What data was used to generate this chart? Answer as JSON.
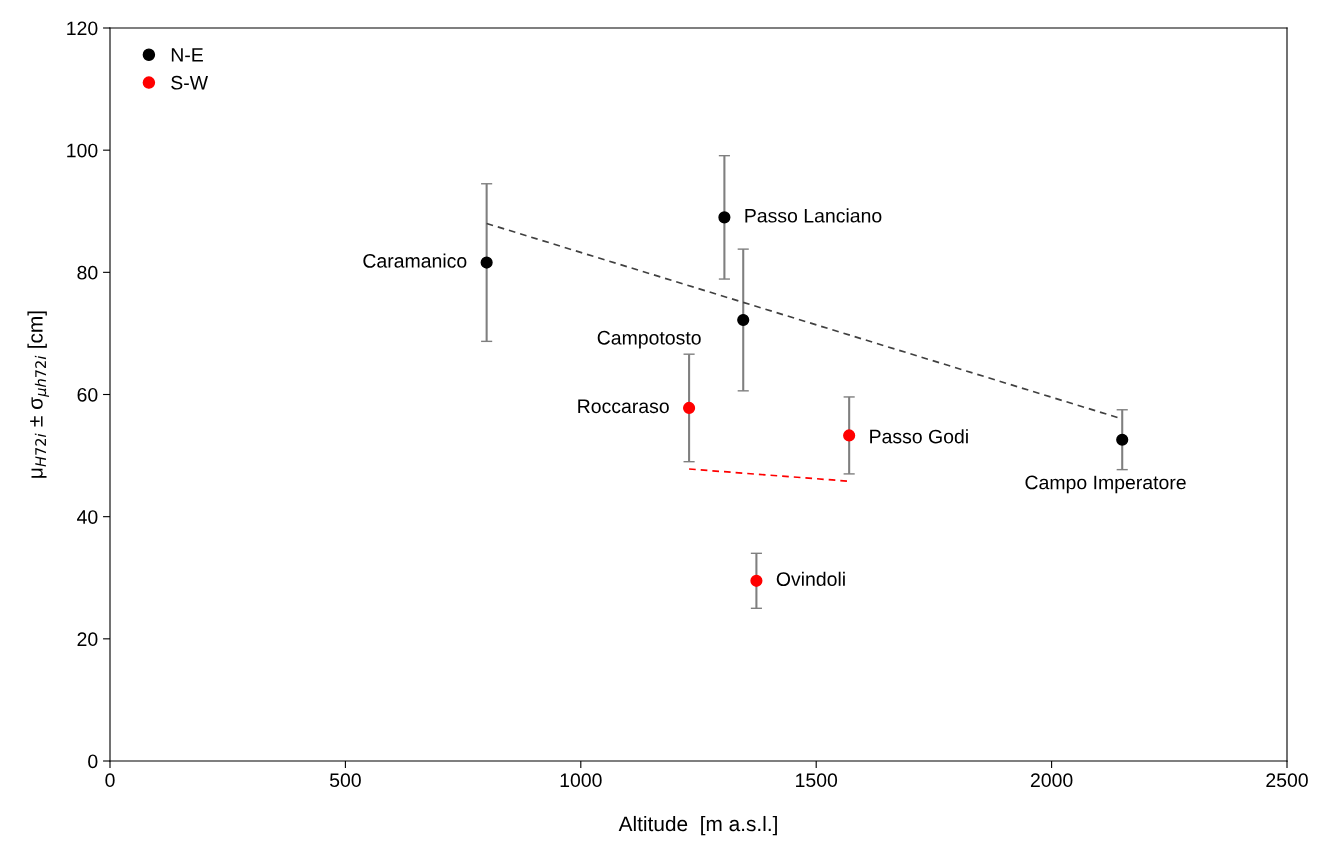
{
  "chart_data": {
    "type": "scatter",
    "xlabel": "Altitude  [m a.s.l.]",
    "ylabel": "μ$_{H72i}$ ± σ$_{μh72i}$ [cm]",
    "xlim": [
      0,
      2500
    ],
    "xticks": [
      0,
      500,
      1000,
      1500,
      2000,
      2500
    ],
    "ylim": [
      0,
      120
    ],
    "yticks": [
      0,
      20,
      40,
      60,
      80,
      100,
      120
    ],
    "grid": false,
    "legend": "top left",
    "marker": "circle",
    "series": [
      {
        "name": "N-E",
        "color": "#000000",
        "x": [
          800,
          1305,
          1345,
          2150
        ],
        "values": [
          81.6,
          89.0,
          72.2,
          52.6
        ],
        "errors": [
          12.9,
          10.1,
          11.6,
          4.9
        ]
      },
      {
        "name": "S-W",
        "color": "#ff0000",
        "x": [
          1230,
          1570,
          1373
        ],
        "values": [
          57.8,
          53.3,
          29.5
        ],
        "errors": [
          8.8,
          6.3,
          4.5
        ]
      },
      {
        "type": "line",
        "marker": "none",
        "line_style": "dashed",
        "color": "#404040",
        "x": [
          800,
          2150
        ],
        "values": [
          88.0,
          56.0
        ]
      },
      {
        "type": "line",
        "marker": "none",
        "line_style": "dashed",
        "color": "#ff0000",
        "x": [
          1230,
          1570
        ],
        "values": [
          47.8,
          45.8
        ]
      }
    ],
    "annotations": [
      {
        "text": "Caramanico",
        "x": 800,
        "y": 81.6
      },
      {
        "text": "Passo Lanciano",
        "x": 1305,
        "y": 89.0
      },
      {
        "text": "Campotosto",
        "x": 1345,
        "y": 72.2
      },
      {
        "text": "Roccaraso",
        "x": 1230,
        "y": 57.8
      },
      {
        "text": "Passo Godi",
        "x": 1570,
        "y": 53.3
      },
      {
        "text": "Campo Imperatore",
        "x": 2150,
        "y": 52.6
      },
      {
        "text": "Ovindoli",
        "x": 1373,
        "y": 29.5
      }
    ]
  }
}
